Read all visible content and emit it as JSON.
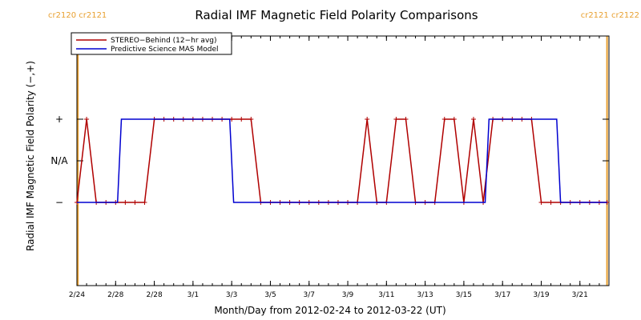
{
  "chart_data": {
    "type": "line",
    "title": "Radial IMF Magnetic Field Polarity Comparisons",
    "xlabel": "Month/Day from 2012-02-24 to 2012-03-22 (UT)",
    "ylabel": "Radial IMF Magnetic Field Polarity (−,+)",
    "xlim": [
      0,
      27.5
    ],
    "ylim": [
      -1.0,
      2.0
    ],
    "x_ticks": [
      {
        "x": 0,
        "label": "2/24"
      },
      {
        "x": 2,
        "label": "2/28"
      },
      {
        "x": 4,
        "label": "2/28"
      },
      {
        "x": 6,
        "label": "3/1"
      },
      {
        "x": 8,
        "label": "3/3"
      },
      {
        "x": 10,
        "label": "3/5"
      },
      {
        "x": 12,
        "label": "3/7"
      },
      {
        "x": 14,
        "label": "3/9"
      },
      {
        "x": 16,
        "label": "3/11"
      },
      {
        "x": 18,
        "label": "3/13"
      },
      {
        "x": 20,
        "label": "3/15"
      },
      {
        "x": 22,
        "label": "3/17"
      },
      {
        "x": 24,
        "label": "3/19"
      },
      {
        "x": 26,
        "label": "3/21"
      }
    ],
    "y_ticks": [
      {
        "y": 0,
        "label": "−"
      },
      {
        "y": 0.5,
        "label": "N/A"
      },
      {
        "y": 1,
        "label": "+"
      }
    ],
    "legend": {
      "placement": "top-left",
      "entries": [
        {
          "name": "STEREO−Behind (12−hr avg)",
          "color": "#b00000"
        },
        {
          "name": "Predictive Science MAS Model",
          "color": "#0000d0"
        }
      ]
    },
    "carrington_markers": [
      {
        "x": 0.05,
        "label": "cr2120 cr2121",
        "side": "left"
      },
      {
        "x": 27.4,
        "label": "cr2121 cr2122",
        "side": "right"
      }
    ],
    "series": [
      {
        "name": "STEREO−Behind (12−hr avg)",
        "color": "#b00000",
        "markers": "plus",
        "x": [
          0,
          0.5,
          1,
          1.5,
          2,
          2.5,
          3,
          3.5,
          4,
          4.5,
          5,
          5.5,
          6,
          6.5,
          7,
          7.5,
          8,
          8.5,
          9,
          9.5,
          10,
          10.5,
          11,
          11.5,
          12,
          12.5,
          13,
          13.5,
          14,
          14.5,
          15,
          15.5,
          16,
          16.5,
          17,
          17.5,
          18,
          18.5,
          19,
          19.5,
          20,
          20.5,
          21,
          21.5,
          22,
          22.5,
          23,
          23.5,
          24,
          24.5,
          25,
          25.5,
          26,
          26.5,
          27,
          27.4
        ],
        "values": [
          0,
          1,
          0,
          0,
          0,
          0,
          0,
          0,
          1,
          1,
          1,
          1,
          1,
          1,
          1,
          1,
          1,
          1,
          1,
          0,
          0,
          0,
          0,
          0,
          0,
          0,
          0,
          0,
          0,
          0,
          1,
          0,
          0,
          1,
          1,
          0,
          0,
          0,
          1,
          1,
          0,
          1,
          0,
          1,
          1,
          1,
          1,
          1,
          0,
          0,
          0,
          0,
          0,
          0,
          0,
          0
        ]
      },
      {
        "name": "Predictive Science MAS Model",
        "color": "#0000d0",
        "markers": "none",
        "x": [
          0,
          2.1,
          2.3,
          7.9,
          8.1,
          21.1,
          21.3,
          24.8,
          25.0,
          27.4
        ],
        "values": [
          0,
          0,
          1,
          1,
          0,
          0,
          1,
          1,
          0,
          0
        ]
      }
    ]
  }
}
